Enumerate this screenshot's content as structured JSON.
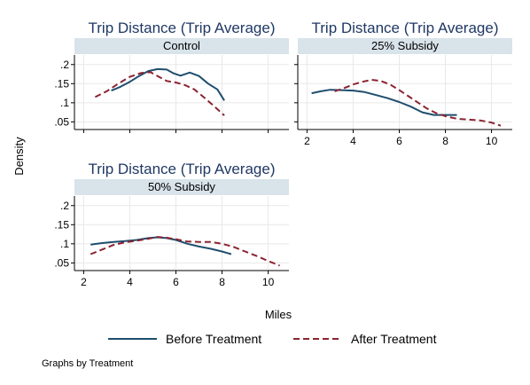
{
  "chart_data": {
    "type": "line",
    "panel_title": "Trip Distance (Trip Average)",
    "xlabel": "Miles",
    "ylabel": "Density",
    "note": "Graphs by Treatment",
    "xlim": [
      1.6,
      10.9
    ],
    "ylim": [
      0.03,
      0.225
    ],
    "x_ticks": [
      2,
      4,
      6,
      8,
      10
    ],
    "y_ticks": [
      0.05,
      0.1,
      0.15,
      0.2
    ],
    "y_tick_labels": [
      ".05",
      ".1",
      ".15",
      ".2"
    ],
    "colors": {
      "before": "#1f4e6e",
      "after": "#8b2330",
      "strip": "#d9e3ea",
      "grid": "#e8e8e8"
    },
    "legend": [
      {
        "key": "before",
        "label": "Before Treatment",
        "style": "solid"
      },
      {
        "key": "after",
        "label": "After Treatment",
        "style": "dashed"
      }
    ],
    "panels": [
      {
        "name": "Control",
        "show_x_ticks": false,
        "show_y_ticks": true,
        "series": [
          {
            "key": "before",
            "x": [
              3.2,
              3.6,
              4.0,
              4.4,
              4.8,
              5.2,
              5.6,
              5.9,
              6.2,
              6.6,
              7.0,
              7.4,
              7.8,
              8.1
            ],
            "y": [
              0.132,
              0.142,
              0.155,
              0.17,
              0.183,
              0.188,
              0.187,
              0.177,
              0.171,
              0.179,
              0.17,
              0.15,
              0.135,
              0.106
            ]
          },
          {
            "key": "after",
            "x": [
              2.5,
              3.0,
              3.5,
              4.0,
              4.5,
              4.9,
              5.2,
              5.6,
              6.0,
              6.4,
              6.8,
              7.2,
              7.6,
              8.1
            ],
            "y": [
              0.115,
              0.13,
              0.15,
              0.168,
              0.178,
              0.18,
              0.17,
              0.157,
              0.153,
              0.146,
              0.135,
              0.115,
              0.094,
              0.067
            ]
          }
        ]
      },
      {
        "name": "25% Subsidy",
        "show_x_ticks": true,
        "show_y_ticks": false,
        "series": [
          {
            "key": "before",
            "x": [
              2.2,
              2.6,
              3.0,
              3.5,
              4.0,
              4.5,
              5.0,
              5.5,
              6.0,
              6.5,
              7.0,
              7.5,
              8.0,
              8.5
            ],
            "y": [
              0.125,
              0.13,
              0.134,
              0.133,
              0.132,
              0.128,
              0.12,
              0.112,
              0.102,
              0.09,
              0.075,
              0.068,
              0.068,
              0.068
            ]
          },
          {
            "key": "after",
            "x": [
              3.2,
              3.6,
              4.0,
              4.4,
              4.8,
              5.2,
              5.6,
              6.0,
              6.4,
              6.8,
              7.2,
              7.6,
              8.0,
              8.5,
              9.0,
              9.5,
              10.0,
              10.4
            ],
            "y": [
              0.13,
              0.138,
              0.148,
              0.155,
              0.16,
              0.157,
              0.148,
              0.133,
              0.117,
              0.101,
              0.085,
              0.073,
              0.065,
              0.058,
              0.056,
              0.054,
              0.048,
              0.04
            ]
          }
        ]
      },
      {
        "name": "50% Subsidy",
        "show_x_ticks": true,
        "show_y_ticks": true,
        "series": [
          {
            "key": "before",
            "x": [
              2.3,
              2.8,
              3.3,
              3.8,
              4.3,
              4.8,
              5.2,
              5.6,
              6.0,
              6.5,
              7.0,
              7.5,
              8.0,
              8.4
            ],
            "y": [
              0.098,
              0.102,
              0.105,
              0.107,
              0.11,
              0.115,
              0.117,
              0.115,
              0.11,
              0.1,
              0.093,
              0.087,
              0.08,
              0.073
            ]
          },
          {
            "key": "after",
            "x": [
              2.3,
              2.8,
              3.3,
              3.8,
              4.3,
              4.8,
              5.2,
              5.6,
              6.0,
              6.5,
              7.0,
              7.5,
              8.0,
              8.5,
              9.0,
              9.5,
              10.0,
              10.5
            ],
            "y": [
              0.073,
              0.085,
              0.097,
              0.104,
              0.108,
              0.113,
              0.118,
              0.116,
              0.112,
              0.106,
              0.105,
              0.105,
              0.1,
              0.092,
              0.08,
              0.068,
              0.055,
              0.043
            ]
          }
        ]
      }
    ]
  }
}
